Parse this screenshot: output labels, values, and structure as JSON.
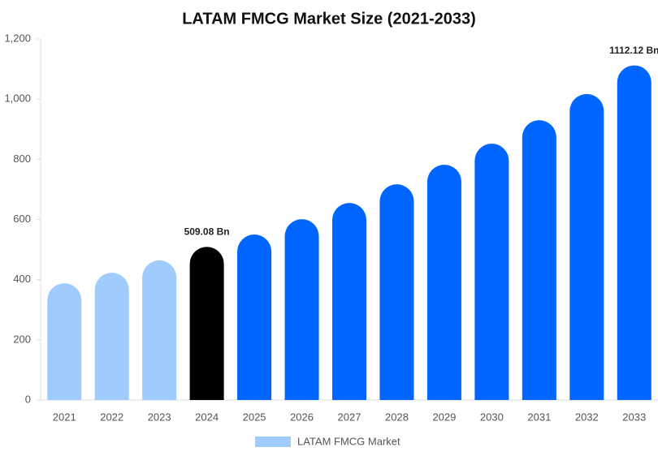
{
  "chart_data": {
    "type": "bar",
    "title": "LATAM FMCG Market Size (2021-2033)",
    "categories": [
      "2021",
      "2022",
      "2023",
      "2024",
      "2025",
      "2026",
      "2027",
      "2028",
      "2029",
      "2030",
      "2031",
      "2032",
      "2033"
    ],
    "series": [
      {
        "name": "LATAM FMCG Market",
        "color": "#a0cbfd",
        "values": [
          388,
          423,
          464,
          509.08,
          550,
          601,
          655,
          717,
          782,
          852,
          930,
          1017,
          1112.12
        ],
        "value_labels": [
          null,
          null,
          null,
          "509.08 Bn",
          null,
          null,
          null,
          null,
          null,
          null,
          null,
          null,
          "1112.12 Bn"
        ],
        "colors": [
          "#a0cbfd",
          "#a0cbfd",
          "#a0cbfd",
          "#000000",
          "#0066ff",
          "#0066ff",
          "#0066ff",
          "#0066ff",
          "#0066ff",
          "#0066ff",
          "#0066ff",
          "#0066ff",
          "#0066ff"
        ]
      }
    ],
    "ylim": [
      0,
      1200
    ],
    "yticks": [
      0,
      200,
      400,
      600,
      800,
      {
        "value": 1000,
        "label": "1,000"
      },
      {
        "value": 1200,
        "label": "1,200"
      }
    ],
    "grid": false
  }
}
